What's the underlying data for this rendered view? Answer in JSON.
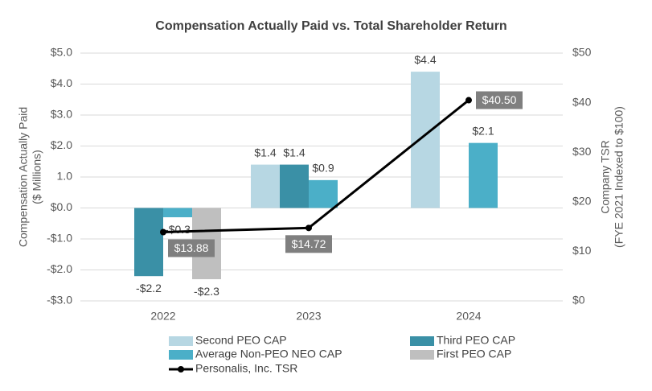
{
  "chart_data": {
    "type": "bar",
    "title": "Compensation Actually Paid vs. Total Shareholder Return",
    "ylabel": [
      "Compensation Actually Paid",
      "($ Millions)"
    ],
    "y2label": [
      "Company TSR",
      "(FYE 2021 Indexed to $100)"
    ],
    "categories": [
      "2022",
      "2023",
      "2024"
    ],
    "series": [
      {
        "name": "Second PEO CAP",
        "color": "#b7d7e3",
        "values": [
          null,
          1.4,
          4.4
        ],
        "value_labels": [
          null,
          "$1.4",
          "$4.4"
        ]
      },
      {
        "name": "Third PEO CAP",
        "color": "#3a90a6",
        "values": [
          -2.2,
          1.4,
          null
        ],
        "value_labels": [
          "-$2.2",
          "$1.4",
          null
        ]
      },
      {
        "name": "Average Non-PEO NEO CAP",
        "color": "#4bafc8",
        "values": [
          -0.3,
          0.9,
          2.1
        ],
        "value_labels": [
          "-$0.3",
          "$0.9",
          "$2.1"
        ]
      },
      {
        "name": "First PEO CAP",
        "color": "#bfbfbf",
        "values": [
          -2.3,
          null,
          null
        ],
        "value_labels": [
          "-$2.3",
          null,
          null
        ]
      },
      {
        "name": "Personalis, Inc. TSR",
        "type": "line",
        "axis": "y2",
        "color": "#000000",
        "values": [
          13.88,
          14.72,
          40.5
        ],
        "value_labels": [
          "$13.88",
          "$14.72",
          "$40.50"
        ]
      }
    ],
    "ylim": [
      -3,
      5
    ],
    "yticks": [
      {
        "value": -3,
        "label": "-$3.0"
      },
      {
        "value": -2,
        "label": "-$2.0"
      },
      {
        "value": -1,
        "label": "-$1.0"
      },
      {
        "value": 0,
        "label": "$0.0"
      },
      {
        "value": 1,
        "label": "1.0"
      },
      {
        "value": 2,
        "label": "$2.0"
      },
      {
        "value": 3,
        "label": "$3.0"
      },
      {
        "value": 4,
        "label": "$4.0"
      },
      {
        "value": 5,
        "label": "$5.0"
      }
    ],
    "y2lim": [
      0,
      50
    ],
    "y2ticks": [
      {
        "value": 0,
        "label": "$0"
      },
      {
        "value": 10,
        "label": "$10"
      },
      {
        "value": 20,
        "label": "$20"
      },
      {
        "value": 30,
        "label": "$30"
      },
      {
        "value": 40,
        "label": "$40"
      },
      {
        "value": 50,
        "label": "$50"
      }
    ],
    "grid": true
  }
}
